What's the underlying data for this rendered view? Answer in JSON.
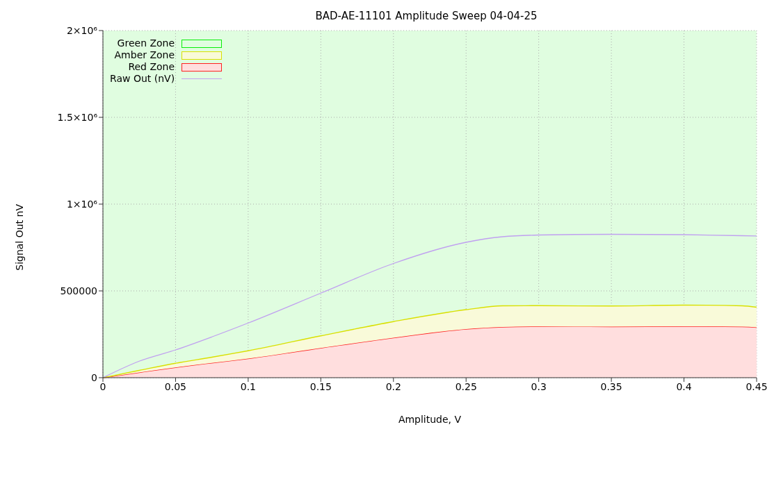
{
  "chart_data": {
    "type": "area",
    "stacked": true,
    "title": "BAD-AE-11101 Amplitude Sweep 04-04-25",
    "xlabel": "Amplitude, V",
    "ylabel": "Signal Out nV",
    "x": [
      0,
      0.025,
      0.05,
      0.075,
      0.1,
      0.15,
      0.2,
      0.25,
      0.275,
      0.3,
      0.35,
      0.4,
      0.44,
      0.45
    ],
    "series": [
      {
        "name": "Red Zone",
        "color": "#ff2020",
        "values": [
          0,
          30000,
          59000,
          85000,
          110000,
          171000,
          230000,
          280000,
          292000,
          295000,
          294000,
          296000,
          294000,
          290000
        ]
      },
      {
        "name": "Amber Zone",
        "color": "#d8e000",
        "values": [
          0,
          12000,
          24000,
          33000,
          45000,
          70000,
          93000,
          112000,
          122000,
          120000,
          119000,
          122000,
          120000,
          116000
        ]
      },
      {
        "name": "Raw Out (nV)",
        "type": "line",
        "color": "#c0a0f0",
        "values": [
          0,
          95000,
          160000,
          235000,
          315000,
          487000,
          658000,
          780000,
          812000,
          822000,
          826000,
          824000,
          818000,
          816000
        ]
      }
    ],
    "bands": [
      {
        "axis": "y",
        "from": 0,
        "to": 2000000,
        "label": "Green Zone",
        "color": "#e0fde0"
      }
    ],
    "xlim": [
      0,
      0.45
    ],
    "xticks": [
      0,
      0.05,
      0.1,
      0.15,
      0.2,
      0.25,
      0.3,
      0.35,
      0.4,
      0.45
    ],
    "ylim": [
      0,
      2000000
    ],
    "yticks": [
      0,
      500000,
      {
        "value": 1000000,
        "label": "1×10⁶"
      },
      {
        "value": 1500000,
        "label": "1.5×10⁶"
      },
      {
        "value": 2000000,
        "label": "2×10⁶"
      }
    ],
    "grid": true,
    "legend": "top left",
    "marker": "none",
    "line_style": "solid"
  }
}
